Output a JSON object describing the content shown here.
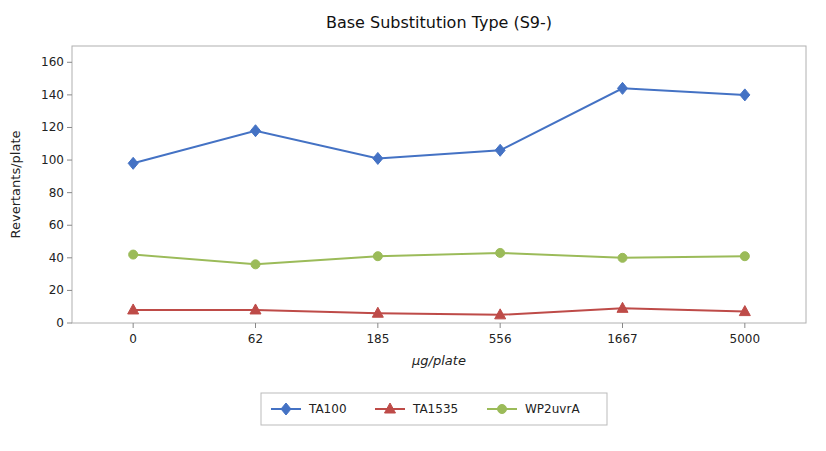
{
  "chart_data": {
    "type": "line",
    "title": "Base Substitution Type (S9-)",
    "xlabel": "μg/plate",
    "ylabel": "Revertants/plate",
    "categories": [
      "0",
      "62",
      "185",
      "556",
      "1667",
      "5000"
    ],
    "series": [
      {
        "name": "TA100",
        "color": "#4472C4",
        "marker": "diamond",
        "values": [
          98,
          118,
          101,
          106,
          144,
          140
        ]
      },
      {
        "name": "TA1535",
        "color": "#BE4B48",
        "marker": "triangle",
        "values": [
          8,
          8,
          6,
          5,
          9,
          7
        ]
      },
      {
        "name": "WP2uvrA",
        "color": "#9BBB59",
        "marker": "circle",
        "values": [
          42,
          36,
          41,
          43,
          40,
          41
        ]
      }
    ],
    "ylim": [
      0,
      170
    ],
    "yticks": [
      0,
      20,
      40,
      60,
      80,
      100,
      120,
      140,
      160
    ],
    "grid": false,
    "legend": "bottom"
  }
}
